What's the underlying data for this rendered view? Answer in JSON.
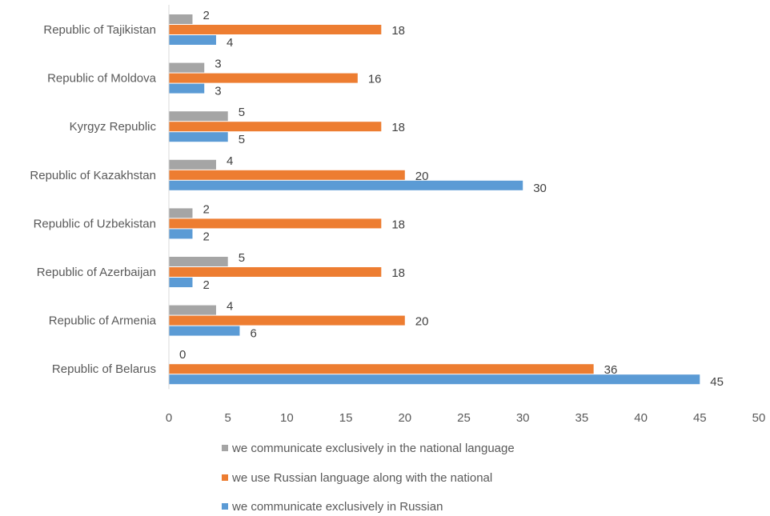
{
  "chart_data": {
    "type": "bar",
    "orientation": "horizontal",
    "title": "",
    "xlabel": "",
    "ylabel": "",
    "xlim": [
      0,
      50
    ],
    "x_ticks": [
      0,
      5,
      10,
      15,
      20,
      25,
      30,
      35,
      40,
      45,
      50
    ],
    "grid": false,
    "legend_position": "bottom",
    "categories": [
      "Republic of Tajikistan",
      "Republic of Moldova",
      "Kyrgyz Republic",
      "Republic of Kazakhstan",
      "Republic of Uzbekistan",
      "Republic of Azerbaijan",
      "Republic of Armenia",
      "Republic of Belarus"
    ],
    "series": [
      {
        "name": "we communicate exclusively in the national language",
        "color": "#a5a5a5",
        "values": [
          2,
          3,
          5,
          4,
          2,
          5,
          4,
          0
        ]
      },
      {
        "name": "we use Russian language along with the national",
        "color": "#ed7d31",
        "values": [
          18,
          16,
          18,
          20,
          18,
          18,
          20,
          36
        ]
      },
      {
        "name": "we communicate exclusively in Russian",
        "color": "#5b9bd5",
        "values": [
          4,
          3,
          5,
          30,
          2,
          2,
          6,
          45
        ]
      }
    ]
  }
}
